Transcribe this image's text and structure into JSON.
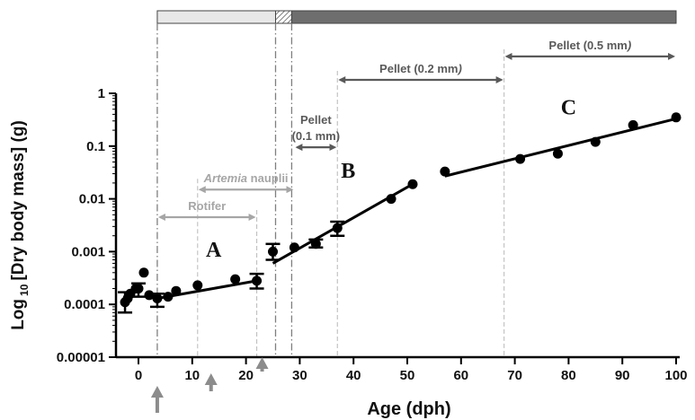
{
  "chart_data": {
    "type": "scatter",
    "xlabel": "Age (dph)",
    "ylabel_main": "Log",
    "ylabel_sub": "10",
    "ylabel_rest": "[Dry body mass] (g)",
    "x_scale": "linear",
    "y_scale": "log",
    "xlim": [
      -3,
      100
    ],
    "ylim": [
      1e-05,
      1
    ],
    "x_ticks": [
      0,
      10,
      20,
      30,
      40,
      50,
      60,
      70,
      80,
      90,
      100
    ],
    "x_tick_labels": [
      "0",
      "10",
      "20",
      "30",
      "40",
      "50",
      "60",
      "70",
      "80",
      "90",
      "100"
    ],
    "y_ticks": [
      1e-05,
      0.0001,
      0.001,
      0.01,
      0.1,
      1
    ],
    "y_tick_labels": [
      "0.00001",
      "0.0001",
      "0.001",
      "0.01",
      "0.1",
      "1"
    ],
    "grid": false,
    "points": [
      {
        "x": -2.5,
        "y": 0.00011
      },
      {
        "x": -2,
        "y": 0.00013
      },
      {
        "x": -1.5,
        "y": 0.00016
      },
      {
        "x": -0.5,
        "y": 0.0002
      },
      {
        "x": 0,
        "y": 0.0002
      },
      {
        "x": 1,
        "y": 0.0004
      },
      {
        "x": 2,
        "y": 0.00015
      },
      {
        "x": 3.5,
        "y": 0.00013
      },
      {
        "x": 5.5,
        "y": 0.00014
      },
      {
        "x": 7,
        "y": 0.00018
      },
      {
        "x": 11,
        "y": 0.00023
      },
      {
        "x": 18,
        "y": 0.0003
      },
      {
        "x": 22,
        "y": 0.00028
      },
      {
        "x": 25,
        "y": 0.001
      },
      {
        "x": 29,
        "y": 0.0012
      },
      {
        "x": 33,
        "y": 0.0014
      },
      {
        "x": 37,
        "y": 0.0028
      },
      {
        "x": 47,
        "y": 0.01
      },
      {
        "x": 51,
        "y": 0.019
      },
      {
        "x": 57,
        "y": 0.033
      },
      {
        "x": 71,
        "y": 0.057
      },
      {
        "x": 78,
        "y": 0.072
      },
      {
        "x": 85,
        "y": 0.12
      },
      {
        "x": 92,
        "y": 0.25
      },
      {
        "x": 100,
        "y": 0.35
      }
    ],
    "error_bars": [
      {
        "x": -2.5,
        "low": 7e-05,
        "high": 0.00017
      },
      {
        "x": 0,
        "low": 0.00014,
        "high": 0.00025
      },
      {
        "x": 3.5,
        "low": 9e-05,
        "high": 0.00016
      },
      {
        "x": 22,
        "low": 0.0002,
        "high": 0.00038
      },
      {
        "x": 25,
        "low": 0.0007,
        "high": 0.0014
      },
      {
        "x": 33,
        "low": 0.0012,
        "high": 0.0017
      },
      {
        "x": 37,
        "low": 0.002,
        "high": 0.0037
      }
    ],
    "fit_lines": [
      {
        "label": "A",
        "x0": 3.5,
        "y0": 0.00013,
        "x1": 22,
        "y1": 0.00028
      },
      {
        "label": "B",
        "x0": 25,
        "y0": 0.0006,
        "x1": 51,
        "y1": 0.019
      },
      {
        "label": "C",
        "x0": 57,
        "y0": 0.027,
        "x1": 100,
        "y1": 0.33
      }
    ],
    "phase_labels": [
      {
        "text": "A",
        "x": 14,
        "y": 0.0008
      },
      {
        "text": "B",
        "x": 39,
        "y": 0.025
      },
      {
        "text": "C",
        "x": 80,
        "y": 0.4
      }
    ],
    "feeding_periods": [
      {
        "text": "Rotifer",
        "italic_part": "",
        "x_start": 3.5,
        "x_end": 22,
        "y": 0.0045,
        "color": "#a6a6a6"
      },
      {
        "text": "nauplii",
        "italic_part": "Artemia",
        "x_start": 11,
        "x_end": 29,
        "y": 0.015,
        "color": "#a6a6a6"
      },
      {
        "text": "(0.1 mm)",
        "italic_part": "",
        "line2": "Pellet",
        "x_start": 29,
        "x_end": 37,
        "y": 0.095,
        "color": "#595959"
      },
      {
        "text": "Pellet (0.2 mm",
        "italic_part": "",
        "suffix_italic": ")",
        "x_start": 37,
        "x_end": 68,
        "y": 1.8,
        "color": "#595959"
      },
      {
        "text": "Pellet (0.5 mm",
        "italic_part": "",
        "suffix_italic": ")",
        "x_start": 68,
        "x_end": 100,
        "y": 5.0,
        "color": "#595959"
      }
    ],
    "vertical_markers": [
      {
        "x": 3.5,
        "style": "dashdot",
        "color": "#7f7f7f",
        "top": "bar"
      },
      {
        "x": 11,
        "style": "dashed",
        "color": "#bfbfbf",
        "top": "label"
      },
      {
        "x": 22,
        "style": "dashed",
        "color": "#bfbfbf",
        "top": "label"
      },
      {
        "x": 25.5,
        "style": "dashdot",
        "color": "#7f7f7f",
        "top": "bar"
      },
      {
        "x": 28.5,
        "style": "dashdot",
        "color": "#7f7f7f",
        "top": "bar"
      },
      {
        "x": 37,
        "style": "dashed",
        "color": "#bfbfbf",
        "top": "label"
      },
      {
        "x": 68,
        "style": "dashed",
        "color": "#bfbfbf",
        "top": "label"
      }
    ],
    "top_bar": [
      {
        "x_start": 3.5,
        "x_end": 25.5,
        "fill": "#e8e8e8",
        "pattern": "none"
      },
      {
        "x_start": 25.5,
        "x_end": 28.5,
        "fill": "#ffffff",
        "pattern": "hatch"
      },
      {
        "x_start": 28.5,
        "x_end": 100,
        "fill": "#6e6e6e",
        "pattern": "none"
      }
    ],
    "arrows": [
      {
        "x": 3.5,
        "size": "large"
      },
      {
        "x": 13.5,
        "size": "medium"
      },
      {
        "x": 23,
        "size": "small"
      }
    ]
  }
}
